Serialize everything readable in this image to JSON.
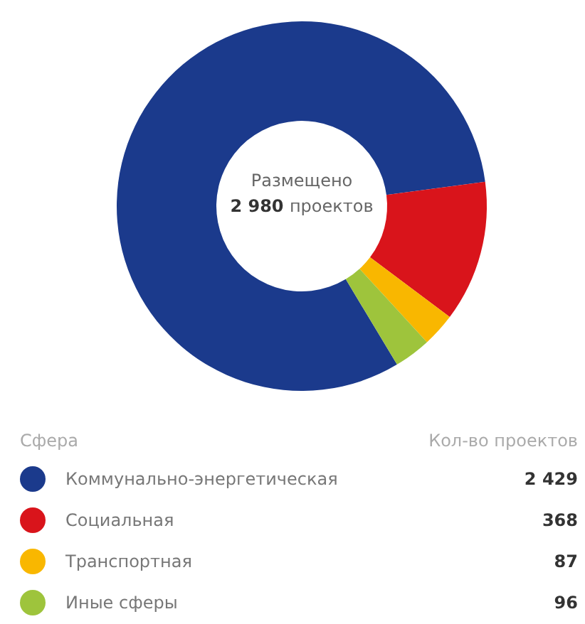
{
  "chart_data": {
    "type": "donut",
    "categories": [
      "Коммунально-энергетическая",
      "Социальная",
      "Транспортная",
      "Иные сферы"
    ],
    "values": [
      2429,
      368,
      87,
      96
    ],
    "colors": [
      "#1b3a8c",
      "#d9141b",
      "#f9b700",
      "#9ec43c"
    ],
    "value_labels": [
      "2 429",
      "368",
      "87",
      "96"
    ],
    "legend": "bottom",
    "legend_title": "Сфера",
    "annotations": [
      "Размещено",
      "2 980 проектов",
      "Кол-во проектов"
    ]
  }
}
